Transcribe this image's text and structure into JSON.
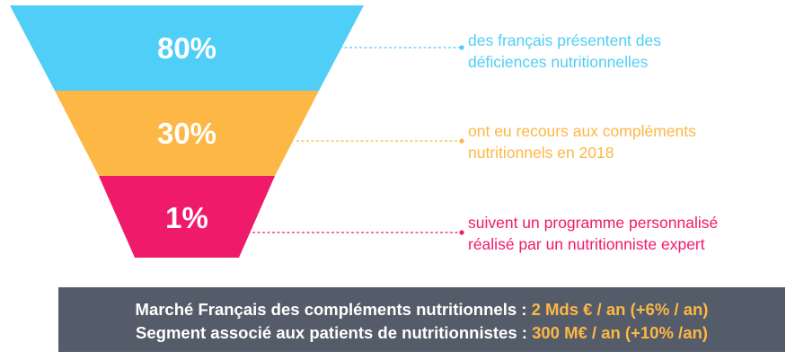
{
  "colors": {
    "level_1": "#4fcef7",
    "level_2": "#fdb744",
    "level_3": "#f01a6b",
    "banner_bg": "#555c69",
    "banner_text": "#ffffff",
    "banner_highlight": "#fdb744"
  },
  "funnel": {
    "levels": [
      {
        "value": "80%",
        "description_lines": [
          "des français présentent des",
          "déficiences nutritionnelles"
        ]
      },
      {
        "value": "30%",
        "description_lines": [
          "ont eu recours aux compléments",
          "nutritionnels en 2018"
        ]
      },
      {
        "value": "1%",
        "description_lines": [
          "suivent un programme personnalisé",
          "réalisé par un nutritionniste expert"
        ]
      }
    ]
  },
  "banner": {
    "line1_label": "Marché Français des compléments nutritionnels : ",
    "line1_value": "2 Mds € / an (+6% / an)",
    "line2_label": "Segment associé aux patients de nutritionnistes : ",
    "line2_value": "300 M€ / an (+10% /an)"
  }
}
